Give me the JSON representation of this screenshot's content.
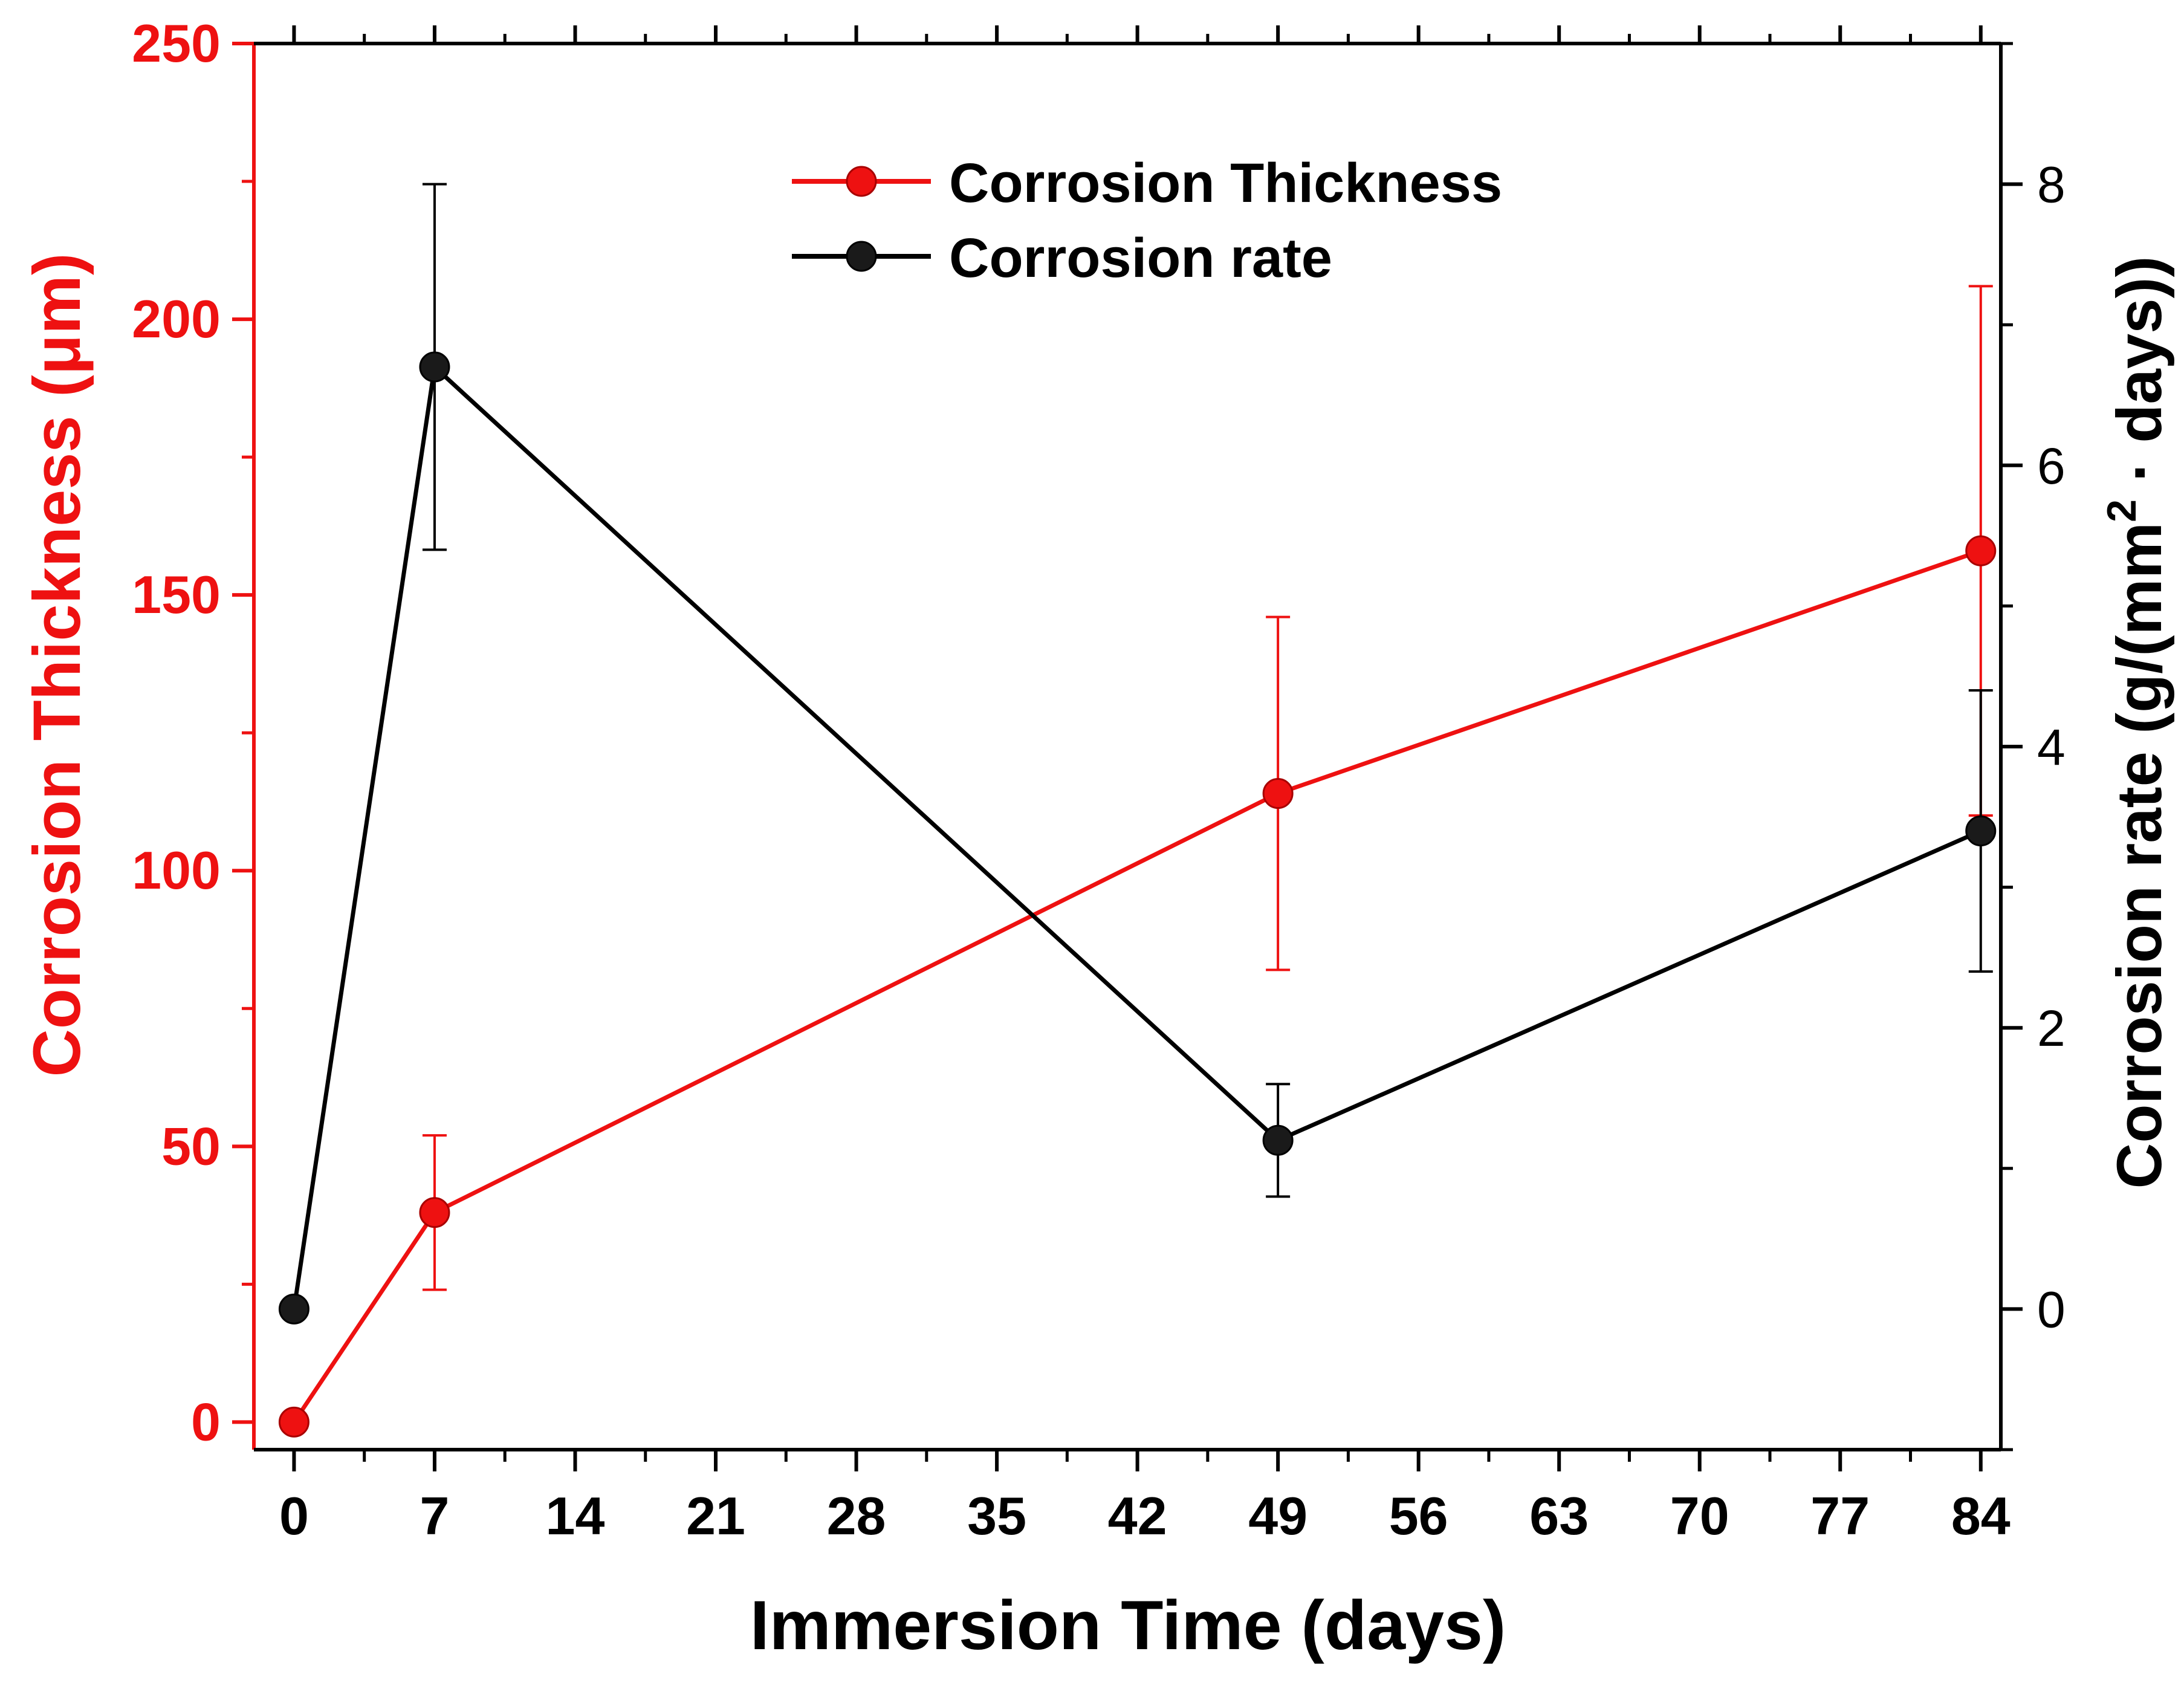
{
  "chart_data": {
    "type": "line",
    "title": "",
    "xlabel": "Immersion Time (days)",
    "ylabel_left": "Corrosion Thickness (μm)",
    "ylabel_right_prefix": "Corrosion rate (g/(mm",
    "ylabel_right_sup": "2",
    "ylabel_right_suffix": " · days))",
    "xlim": [
      -2,
      85
    ],
    "ylim_left": [
      -5,
      250
    ],
    "ylim_right": [
      -1,
      9
    ],
    "x_ticks": [
      0,
      7,
      14,
      21,
      28,
      35,
      42,
      49,
      56,
      63,
      70,
      77,
      84
    ],
    "y_left_ticks": [
      0,
      50,
      100,
      150,
      200,
      250
    ],
    "y_right_ticks": [
      0,
      2,
      4,
      6,
      8
    ],
    "legend_position": "top-center",
    "colors": {
      "thickness": "#ee1111",
      "rate": "#000000"
    },
    "series": [
      {
        "name": "Corrosion Thickness",
        "axis": "left",
        "x": [
          0,
          7,
          49,
          84
        ],
        "values": [
          0,
          38,
          114,
          158
        ],
        "err_low": [
          0,
          24,
          82,
          110
        ],
        "err_high": [
          0,
          52,
          146,
          206
        ]
      },
      {
        "name": "Corrosion rate",
        "axis": "right",
        "x": [
          0,
          7,
          49,
          84
        ],
        "values": [
          0,
          6.7,
          1.2,
          3.4
        ],
        "err_low": [
          0,
          5.4,
          0.8,
          2.4
        ],
        "err_high": [
          0,
          8.0,
          1.6,
          4.4
        ]
      }
    ]
  }
}
